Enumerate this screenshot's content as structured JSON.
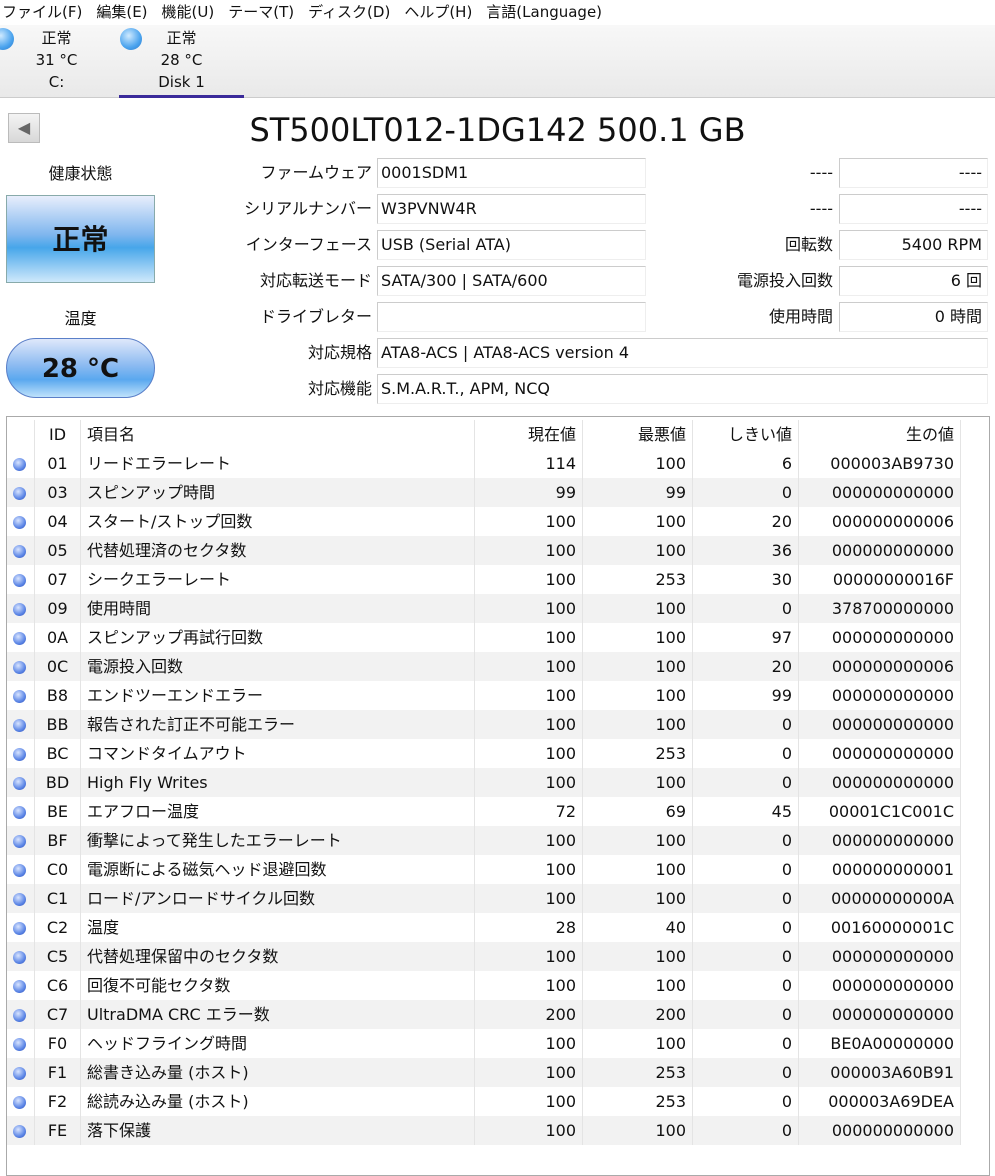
{
  "menu": [
    "ファイル(F)",
    "編集(E)",
    "機能(U)",
    "テーマ(T)",
    "ディスク(D)",
    "ヘルプ(H)",
    "言語(Language)"
  ],
  "disks": [
    {
      "status": "正常",
      "temp": "31 °C",
      "name": "C:"
    },
    {
      "status": "正常",
      "temp": "28 °C",
      "name": "Disk 1",
      "active": true
    }
  ],
  "title": "ST500LT012-1DG142 500.1 GB",
  "health_label": "健康状態",
  "health": "正常",
  "health_color": "#47a6ea",
  "temp_label": "温度",
  "temp": "28 °C",
  "fields": [
    {
      "label": "ファームウェア",
      "value": "0001SDM1"
    },
    {
      "label": "シリアルナンバー",
      "value": "W3PVNW4R"
    },
    {
      "label": "インターフェース",
      "value": "USB (Serial ATA)"
    },
    {
      "label": "対応転送モード",
      "value": "SATA/300 | SATA/600"
    },
    {
      "label": "ドライブレター",
      "value": ""
    },
    {
      "label": "対応規格",
      "value": "ATA8-ACS | ATA8-ACS version 4"
    },
    {
      "label": "対応機能",
      "value": "S.M.A.R.T., APM, NCQ"
    }
  ],
  "right_fields": [
    {
      "label": "----",
      "value": "----"
    },
    {
      "label": "----",
      "value": "----"
    },
    {
      "label": "回転数",
      "value": "5400 RPM"
    },
    {
      "label": "電源投入回数",
      "value": "6 回"
    },
    {
      "label": "使用時間",
      "value": "0 時間"
    }
  ],
  "table": {
    "headers": [
      "",
      "ID",
      "項目名",
      "現在値",
      "最悪値",
      "しきい値",
      "生の値"
    ],
    "rows": [
      [
        "01",
        "リードエラーレート",
        "114",
        "100",
        "6",
        "000003AB9730"
      ],
      [
        "03",
        "スピンアップ時間",
        "99",
        "99",
        "0",
        "000000000000"
      ],
      [
        "04",
        "スタート/ストップ回数",
        "100",
        "100",
        "20",
        "000000000006"
      ],
      [
        "05",
        "代替処理済のセクタ数",
        "100",
        "100",
        "36",
        "000000000000"
      ],
      [
        "07",
        "シークエラーレート",
        "100",
        "253",
        "30",
        "00000000016F"
      ],
      [
        "09",
        "使用時間",
        "100",
        "100",
        "0",
        "378700000000"
      ],
      [
        "0A",
        "スピンアップ再試行回数",
        "100",
        "100",
        "97",
        "000000000000"
      ],
      [
        "0C",
        "電源投入回数",
        "100",
        "100",
        "20",
        "000000000006"
      ],
      [
        "B8",
        "エンドツーエンドエラー",
        "100",
        "100",
        "99",
        "000000000000"
      ],
      [
        "BB",
        "報告された訂正不可能エラー",
        "100",
        "100",
        "0",
        "000000000000"
      ],
      [
        "BC",
        "コマンドタイムアウト",
        "100",
        "253",
        "0",
        "000000000000"
      ],
      [
        "BD",
        "High Fly Writes",
        "100",
        "100",
        "0",
        "000000000000"
      ],
      [
        "BE",
        "エアフロー温度",
        "72",
        "69",
        "45",
        "00001C1C001C"
      ],
      [
        "BF",
        "衝撃によって発生したエラーレート",
        "100",
        "100",
        "0",
        "000000000000"
      ],
      [
        "C0",
        "電源断による磁気ヘッド退避回数",
        "100",
        "100",
        "0",
        "000000000001"
      ],
      [
        "C1",
        "ロード/アンロードサイクル回数",
        "100",
        "100",
        "0",
        "00000000000A"
      ],
      [
        "C2",
        "温度",
        "28",
        "40",
        "0",
        "00160000001C"
      ],
      [
        "C5",
        "代替処理保留中のセクタ数",
        "100",
        "100",
        "0",
        "000000000000"
      ],
      [
        "C6",
        "回復不可能セクタ数",
        "100",
        "100",
        "0",
        "000000000000"
      ],
      [
        "C7",
        "UltraDMA CRC エラー数",
        "200",
        "200",
        "0",
        "000000000000"
      ],
      [
        "F0",
        "ヘッドフライング時間",
        "100",
        "100",
        "0",
        "BE0A00000000"
      ],
      [
        "F1",
        "総書き込み量 (ホスト)",
        "100",
        "253",
        "0",
        "000003A60B91"
      ],
      [
        "F2",
        "総読み込み量 (ホスト)",
        "100",
        "253",
        "0",
        "000003A69DEA"
      ],
      [
        "FE",
        "落下保護",
        "100",
        "100",
        "0",
        "000000000000"
      ]
    ]
  }
}
